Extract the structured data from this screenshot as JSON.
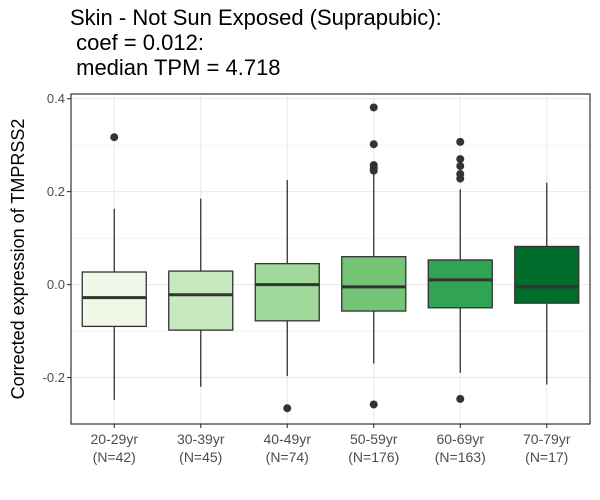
{
  "chart_data": {
    "type": "boxplot",
    "title_lines": [
      "Skin - Not Sun Exposed (Suprapubic):",
      " coef = 0.012:",
      " median TPM = 4.718"
    ],
    "xlabel": "",
    "ylabel": "Corrected expression of TMPRSS2",
    "ylim": [
      -0.3,
      0.41
    ],
    "yticks": [
      -0.2,
      0.0,
      0.2,
      0.4
    ],
    "ytick_labels": [
      "-0.2",
      "0.0",
      "0.2",
      "0.4"
    ],
    "grid": true,
    "categories": [
      {
        "label": "20-29yr",
        "n_label": "(N=42)",
        "color": "#f0f9e8",
        "whisker_low": -0.248,
        "q1": -0.09,
        "median": -0.028,
        "q3": 0.027,
        "whisker_high": 0.163,
        "outliers": [
          0.317
        ]
      },
      {
        "label": "30-39yr",
        "n_label": "(N=45)",
        "color": "#c7e9c0",
        "whisker_low": -0.22,
        "q1": -0.098,
        "median": -0.022,
        "q3": 0.029,
        "whisker_high": 0.185,
        "outliers": []
      },
      {
        "label": "40-49yr",
        "n_label": "(N=74)",
        "color": "#a1d99b",
        "whisker_low": -0.197,
        "q1": -0.078,
        "median": 0.0,
        "q3": 0.045,
        "whisker_high": 0.225,
        "outliers": [
          -0.266
        ]
      },
      {
        "label": "50-59yr",
        "n_label": "(N=176)",
        "color": "#74c476",
        "whisker_low": -0.17,
        "q1": -0.057,
        "median": -0.005,
        "q3": 0.06,
        "whisker_high": 0.24,
        "outliers": [
          0.381,
          0.302,
          0.257,
          0.25,
          0.245,
          -0.258
        ]
      },
      {
        "label": "60-69yr",
        "n_label": "(N=163)",
        "color": "#31a354",
        "whisker_low": -0.19,
        "q1": -0.05,
        "median": 0.01,
        "q3": 0.053,
        "whisker_high": 0.205,
        "outliers": [
          0.307,
          0.27,
          0.255,
          0.238,
          0.228,
          -0.246
        ]
      },
      {
        "label": "70-79yr",
        "n_label": "(N=17)",
        "color": "#006d2c",
        "whisker_low": -0.215,
        "q1": -0.04,
        "median": -0.005,
        "q3": 0.082,
        "whisker_high": 0.219,
        "outliers": []
      }
    ]
  }
}
